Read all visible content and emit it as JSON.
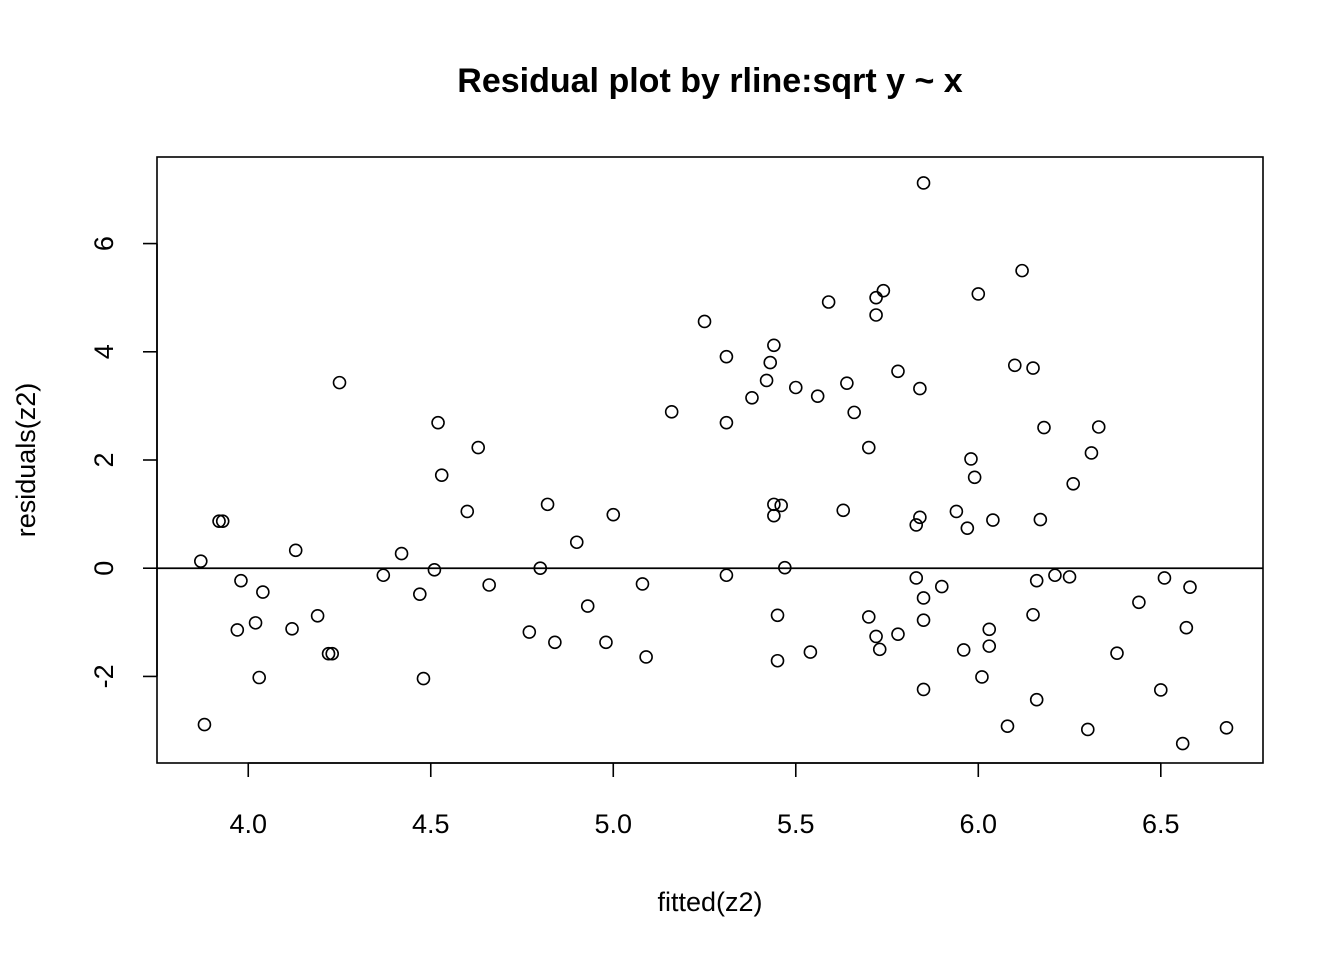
{
  "chart_data": {
    "type": "scatter",
    "title": "Residual plot by rline:sqrt y ~ x",
    "xlabel": "fitted(z2)",
    "ylabel": "residuals(z2)",
    "xlim": [
      3.75,
      6.78
    ],
    "ylim": [
      -3.6,
      7.6
    ],
    "xticks": [
      4.0,
      4.5,
      5.0,
      5.5,
      6.0,
      6.5
    ],
    "xtick_labels": [
      "4.0",
      "4.5",
      "5.0",
      "5.5",
      "6.0",
      "6.5"
    ],
    "yticks": [
      -2,
      0,
      2,
      4,
      6
    ],
    "ytick_labels": [
      "-2",
      "0",
      "2",
      "4",
      "6"
    ],
    "reference_line": 0,
    "grid": false,
    "legend": "none",
    "marker": "open-circle",
    "series": [
      {
        "points": [
          [
            3.87,
            0.13
          ],
          [
            3.88,
            -2.89
          ],
          [
            3.92,
            0.87
          ],
          [
            3.93,
            0.87
          ],
          [
            3.97,
            -1.14
          ],
          [
            3.98,
            -0.23
          ],
          [
            4.02,
            -1.01
          ],
          [
            4.03,
            -2.02
          ],
          [
            4.04,
            -0.44
          ],
          [
            4.12,
            -1.12
          ],
          [
            4.13,
            0.33
          ],
          [
            4.19,
            -0.88
          ],
          [
            4.22,
            -1.58
          ],
          [
            4.23,
            -1.58
          ],
          [
            4.25,
            3.43
          ],
          [
            4.37,
            -0.13
          ],
          [
            4.42,
            0.27
          ],
          [
            4.47,
            -0.48
          ],
          [
            4.48,
            -2.04
          ],
          [
            4.51,
            -0.03
          ],
          [
            4.52,
            2.69
          ],
          [
            4.53,
            1.72
          ],
          [
            4.6,
            1.05
          ],
          [
            4.63,
            2.23
          ],
          [
            4.66,
            -0.31
          ],
          [
            4.77,
            -1.18
          ],
          [
            4.8,
            0.0
          ],
          [
            4.82,
            1.18
          ],
          [
            4.84,
            -1.37
          ],
          [
            4.9,
            0.48
          ],
          [
            4.93,
            -0.7
          ],
          [
            4.98,
            -1.37
          ],
          [
            5.0,
            0.99
          ],
          [
            5.08,
            -0.29
          ],
          [
            5.09,
            -1.64
          ],
          [
            5.16,
            2.89
          ],
          [
            5.25,
            4.56
          ],
          [
            5.31,
            3.91
          ],
          [
            5.31,
            2.69
          ],
          [
            5.31,
            -0.13
          ],
          [
            5.38,
            3.15
          ],
          [
            5.42,
            3.47
          ],
          [
            5.43,
            3.8
          ],
          [
            5.44,
            4.12
          ],
          [
            5.44,
            1.18
          ],
          [
            5.44,
            0.97
          ],
          [
            5.45,
            -0.87
          ],
          [
            5.45,
            -1.71
          ],
          [
            5.46,
            1.16
          ],
          [
            5.47,
            0.01
          ],
          [
            5.5,
            3.34
          ],
          [
            5.54,
            -1.55
          ],
          [
            5.56,
            3.18
          ],
          [
            5.59,
            4.92
          ],
          [
            5.63,
            1.07
          ],
          [
            5.64,
            3.42
          ],
          [
            5.66,
            2.88
          ],
          [
            5.7,
            2.23
          ],
          [
            5.7,
            -0.9
          ],
          [
            5.72,
            5.0
          ],
          [
            5.72,
            4.68
          ],
          [
            5.72,
            -1.26
          ],
          [
            5.73,
            -1.5
          ],
          [
            5.74,
            5.13
          ],
          [
            5.78,
            3.64
          ],
          [
            5.78,
            -1.22
          ],
          [
            5.83,
            0.8
          ],
          [
            5.83,
            -0.18
          ],
          [
            5.84,
            3.32
          ],
          [
            5.84,
            0.94
          ],
          [
            5.85,
            7.12
          ],
          [
            5.85,
            -0.55
          ],
          [
            5.85,
            -0.96
          ],
          [
            5.85,
            -2.24
          ],
          [
            5.9,
            -0.34
          ],
          [
            5.94,
            1.05
          ],
          [
            5.96,
            -1.51
          ],
          [
            5.97,
            0.74
          ],
          [
            5.98,
            2.02
          ],
          [
            5.99,
            1.68
          ],
          [
            6.0,
            5.07
          ],
          [
            6.01,
            -2.01
          ],
          [
            6.03,
            -1.13
          ],
          [
            6.03,
            -1.44
          ],
          [
            6.04,
            0.89
          ],
          [
            6.08,
            -2.92
          ],
          [
            6.1,
            3.75
          ],
          [
            6.12,
            5.5
          ],
          [
            6.15,
            3.7
          ],
          [
            6.15,
            -0.86
          ],
          [
            6.16,
            -0.23
          ],
          [
            6.16,
            -2.43
          ],
          [
            6.17,
            0.9
          ],
          [
            6.18,
            2.6
          ],
          [
            6.21,
            -0.13
          ],
          [
            6.25,
            -0.16
          ],
          [
            6.26,
            1.56
          ],
          [
            6.3,
            -2.98
          ],
          [
            6.31,
            2.13
          ],
          [
            6.33,
            2.61
          ],
          [
            6.38,
            -1.57
          ],
          [
            6.44,
            -0.63
          ],
          [
            6.5,
            -2.25
          ],
          [
            6.51,
            -0.18
          ],
          [
            6.56,
            -3.24
          ],
          [
            6.57,
            -1.1
          ],
          [
            6.58,
            -0.35
          ],
          [
            6.68,
            -2.95
          ]
        ]
      }
    ]
  }
}
